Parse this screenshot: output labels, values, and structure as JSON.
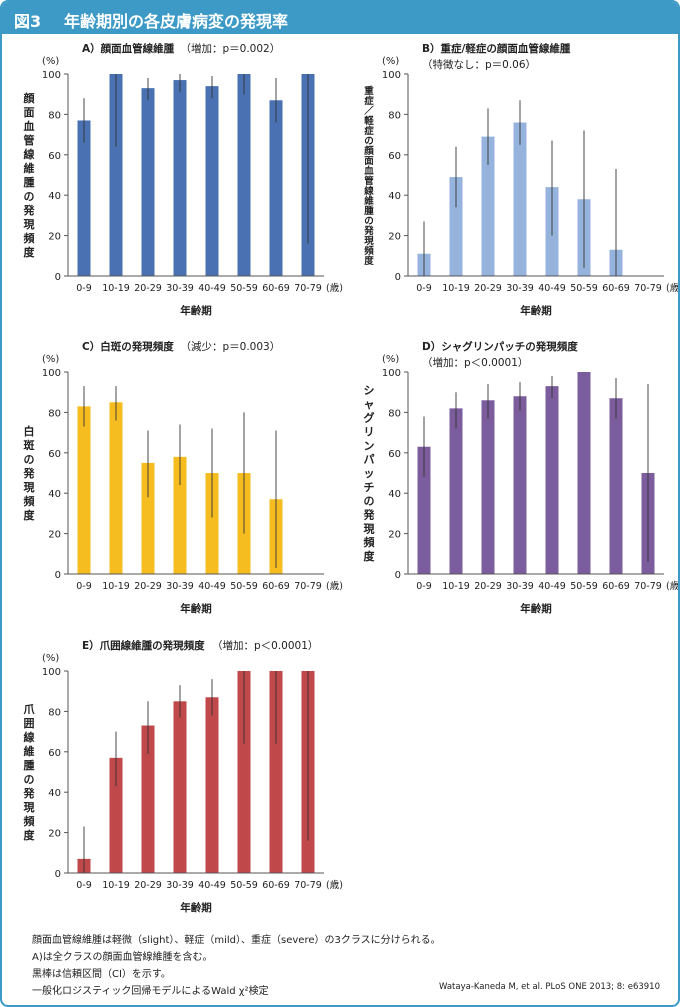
{
  "header": {
    "fig_label": "図3",
    "title": "年齢期別の各皮膚病変の発現率"
  },
  "common": {
    "unit_label": "(%)",
    "xlabel": "年齢期",
    "age_unit": "(歳)",
    "y_ticks": [
      "0",
      "20",
      "40",
      "60",
      "80",
      "100"
    ]
  },
  "chart_data": [
    {
      "id": "A",
      "type": "bar",
      "title": "A）顔面血管線維腫",
      "subtitle": "（増加：p＝0.002）",
      "ylabel": "顔面血管線維腫の発現頻度",
      "xlabel": "年齢期",
      "categories": [
        "0-9",
        "10-19",
        "20-29",
        "30-39",
        "40-49",
        "50-59",
        "60-69",
        "70-79"
      ],
      "values": [
        77,
        100,
        93,
        97,
        94,
        100,
        87,
        100
      ],
      "ci_low": [
        66,
        64,
        87,
        91,
        88,
        90,
        76,
        16
      ],
      "ci_high": [
        88,
        100,
        98,
        100,
        99,
        100,
        98,
        100
      ],
      "ylim": [
        0,
        100
      ],
      "color": "#4a72b2"
    },
    {
      "id": "B",
      "type": "bar",
      "title": "B）重症/軽症の顔面血管線維腫",
      "subtitle": "（特徴なし：p＝0.06）",
      "ylabel": "重症/軽症の顔面血管線維腫の発現頻度",
      "xlabel": "年齢期",
      "categories": [
        "0-9",
        "10-19",
        "20-29",
        "30-39",
        "40-49",
        "50-59",
        "60-69",
        "70-79"
      ],
      "values": [
        11,
        49,
        69,
        76,
        44,
        38,
        13,
        0
      ],
      "ci_low": [
        0,
        34,
        55,
        65,
        20,
        4,
        0,
        0
      ],
      "ci_high": [
        27,
        64,
        83,
        87,
        67,
        72,
        53,
        0
      ],
      "ylim": [
        0,
        100
      ],
      "color": "#95b3dd"
    },
    {
      "id": "C",
      "type": "bar",
      "title": "C）白斑の発現頻度",
      "subtitle": "（減少：p＝0.003）",
      "ylabel": "白斑の発現頻度",
      "xlabel": "年齢期",
      "categories": [
        "0-9",
        "10-19",
        "20-29",
        "30-39",
        "40-49",
        "50-59",
        "60-69",
        "70-79"
      ],
      "values": [
        83,
        85,
        55,
        58,
        50,
        50,
        37,
        0
      ],
      "ci_low": [
        73,
        76,
        38,
        44,
        28,
        20,
        3,
        0
      ],
      "ci_high": [
        93,
        93,
        71,
        74,
        72,
        80,
        71,
        0
      ],
      "ylim": [
        0,
        100
      ],
      "color": "#f5bd1f"
    },
    {
      "id": "D",
      "type": "bar",
      "title": "D）シャグリンパッチの発現頻度",
      "subtitle": "（増加：p＜0.0001）",
      "ylabel": "シャグリンパッチの発現頻度",
      "xlabel": "年齢期",
      "categories": [
        "0-9",
        "10-19",
        "20-29",
        "30-39",
        "40-49",
        "50-59",
        "60-69",
        "70-79"
      ],
      "values": [
        63,
        82,
        86,
        88,
        93,
        100,
        87,
        50
      ],
      "ci_low": [
        48,
        72,
        77,
        81,
        87,
        100,
        77,
        6
      ],
      "ci_high": [
        78,
        90,
        94,
        95,
        98,
        100,
        97,
        94
      ],
      "ylim": [
        0,
        100
      ],
      "color": "#7b5c9c"
    },
    {
      "id": "E",
      "type": "bar",
      "title": "E）爪囲線維腫の発現頻度",
      "subtitle": "（増加：p＜0.0001）",
      "ylabel": "爪囲線維腫の発現頻度",
      "xlabel": "年齢期",
      "categories": [
        "0-9",
        "10-19",
        "20-29",
        "30-39",
        "40-49",
        "50-59",
        "60-69",
        "70-79"
      ],
      "values": [
        7,
        57,
        73,
        85,
        87,
        100,
        100,
        100
      ],
      "ci_low": [
        0,
        43,
        59,
        77,
        78,
        64,
        64,
        16
      ],
      "ci_high": [
        23,
        70,
        85,
        93,
        96,
        100,
        100,
        100
      ],
      "ylim": [
        0,
        100
      ],
      "color": "#c0484a"
    }
  ],
  "notes": [
    "顔面血管線維腫は軽微（slight）、軽症（mild）、重症（severe）の3クラスに分けられる。",
    "A)は全クラスの顔面血管線維腫を含む。",
    "黒棒は信頼区間（CI）を示す。",
    "一般化ロジスティック回帰モデルによるWald χ²検定"
  ],
  "citation": "Wataya-Kaneda M, et al. PLoS ONE 2013; 8: e63910"
}
